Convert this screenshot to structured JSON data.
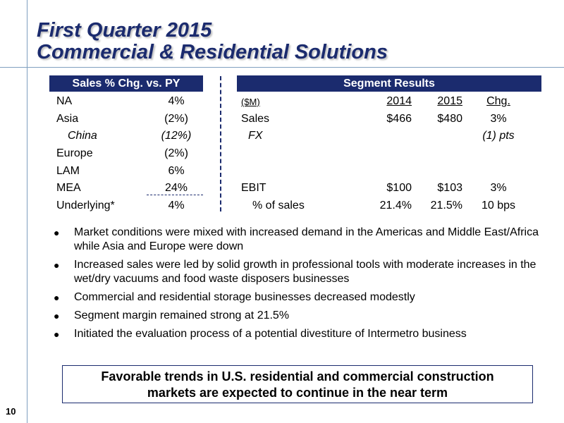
{
  "title": {
    "line1": "First Quarter 2015",
    "line2": "Commercial & Residential Solutions"
  },
  "sales_table": {
    "header": "Sales % Chg. vs. PY",
    "rows": [
      {
        "label": "NA",
        "value": "4%"
      },
      {
        "label": "Asia",
        "value": "(2%)"
      },
      {
        "label": "China",
        "value": "(12%)"
      },
      {
        "label": "Europe",
        "value": "(2%)"
      },
      {
        "label": "LAM",
        "value": "6%"
      },
      {
        "label": "MEA",
        "value": "24%"
      },
      {
        "label": "Underlying*",
        "value": "4%"
      }
    ]
  },
  "segment": {
    "header": "Segment Results",
    "col_label": "($M)",
    "col_2014": "2014",
    "col_2015": "2015",
    "col_chg": "Chg.",
    "sales": {
      "label": "Sales",
      "v2014": "$466",
      "v2015": "$480",
      "chg": "3%"
    },
    "fx": {
      "label": "FX",
      "chg": "(1) pts"
    },
    "ebit": {
      "label": "EBIT",
      "v2014": "$100",
      "v2015": "$103",
      "chg": "3%"
    },
    "pct": {
      "label": "% of sales",
      "v2014": "21.4%",
      "v2015": "21.5%",
      "chg": "10 bps"
    }
  },
  "bullet_glyph": "●",
  "bullets": [
    "Market conditions were mixed with increased demand in the Americas and Middle East/Africa while Asia and Europe were down",
    "Increased sales were led by solid growth in professional tools with moderate increases in the wet/dry vacuums and food waste disposers businesses",
    "Commercial and residential storage businesses decreased modestly",
    "Segment margin remained strong at 21.5%",
    "Initiated the evaluation process of a potential divestiture of Intermetro business"
  ],
  "callout": {
    "line1": "Favorable trends in U.S. residential and commercial construction",
    "line2": "markets are expected to continue in the near term"
  },
  "page_number": "10",
  "colors": {
    "navy": "#1b2b6e",
    "guide": "#7f9fbf"
  }
}
